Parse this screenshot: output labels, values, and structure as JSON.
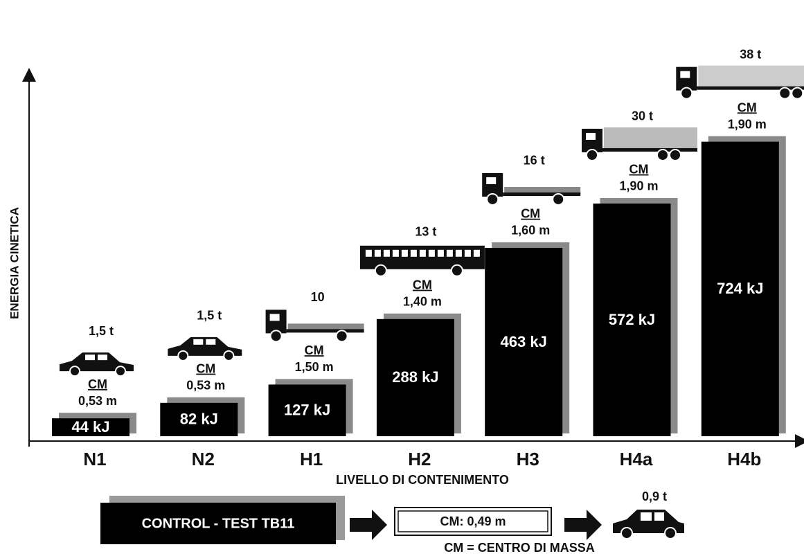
{
  "chart_data": {
    "type": "bar",
    "y_label": "ENERGIA CINETICA",
    "x_label": "LIVELLO DI CONTENIMENTO",
    "categories": [
      "N1",
      "N2",
      "H1",
      "H2",
      "H3",
      "H4a",
      "H4b"
    ],
    "values": [
      44,
      82,
      127,
      288,
      463,
      572,
      724
    ],
    "value_labels": [
      "44 kJ",
      "82 kJ",
      "127 kJ",
      "288 kJ",
      "463 kJ",
      "572 kJ",
      "724 kJ"
    ],
    "vehicle_mass": [
      "1,5 t",
      "1,5 t",
      "10",
      "13 t",
      "16 t",
      "30 t",
      "38 t"
    ],
    "cm_label": "CM",
    "cm_heights": [
      "0,53 m",
      "0,53 m",
      "1,50 m",
      "1,40 m",
      "1,60 m",
      "1,90 m",
      "1,90 m"
    ],
    "color": "#000000",
    "ylim": [
      0,
      800
    ],
    "footer": {
      "test": "CONTROL - TEST  TB11",
      "cm": "CM: 0,49 m",
      "mass": "0,9 t",
      "legend": "CM = CENTRO DI MASSA"
    }
  }
}
